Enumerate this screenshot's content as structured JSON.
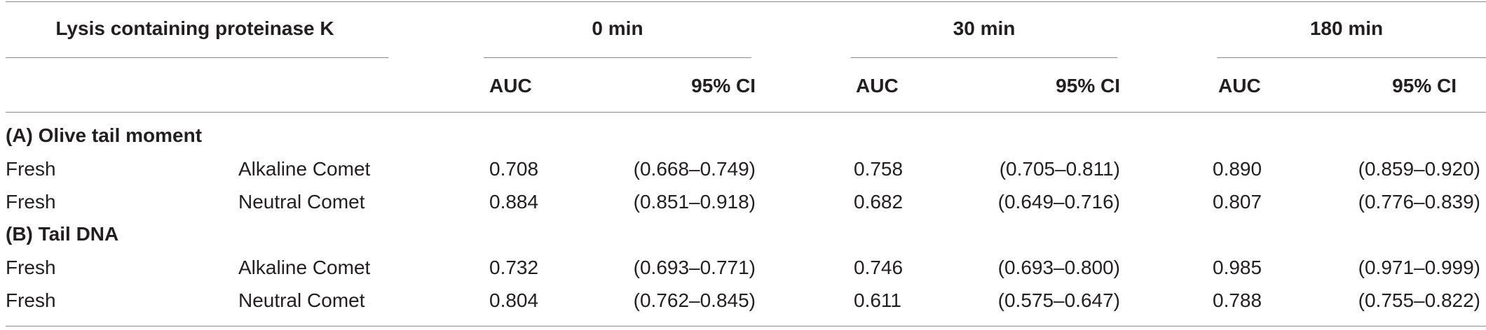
{
  "table": {
    "top_header": {
      "lysis_label": "Lysis containing proteinase K",
      "time_0": "0 min",
      "time_30": "30 min",
      "time_180": "180 min"
    },
    "sub_header": {
      "auc_0": "AUC",
      "ci_0": "95% CI",
      "auc_30": "AUC",
      "ci_30": "95% CI",
      "auc_180": "AUC",
      "ci_180": "95% CI"
    },
    "sections": [
      {
        "title": "(A) Olive tail moment",
        "rows": [
          {
            "sample": "Fresh",
            "assay": "Alkaline Comet",
            "auc_0": "0.708",
            "ci_0": "(0.668–0.749)",
            "auc_30": "0.758",
            "ci_30": "(0.705–0.811)",
            "auc_180": "0.890",
            "ci_180": "(0.859–0.920)"
          },
          {
            "sample": "Fresh",
            "assay": "Neutral Comet",
            "auc_0": "0.884",
            "ci_0": "(0.851–0.918)",
            "auc_30": "0.682",
            "ci_30": "(0.649–0.716)",
            "auc_180": "0.807",
            "ci_180": "(0.776–0.839)"
          }
        ]
      },
      {
        "title": "(B) Tail DNA",
        "rows": [
          {
            "sample": "Fresh",
            "assay": "Alkaline Comet",
            "auc_0": "0.732",
            "ci_0": "(0.693–0.771)",
            "auc_30": "0.746",
            "ci_30": "(0.693–0.800)",
            "auc_180": "0.985",
            "ci_180": "(0.971–0.999)"
          },
          {
            "sample": "Fresh",
            "assay": "Neutral Comet",
            "auc_0": "0.804",
            "ci_0": "(0.762–0.845)",
            "auc_30": "0.611",
            "ci_30": "(0.575–0.647)",
            "auc_180": "0.788",
            "ci_180": "(0.755–0.822)"
          }
        ]
      }
    ]
  }
}
